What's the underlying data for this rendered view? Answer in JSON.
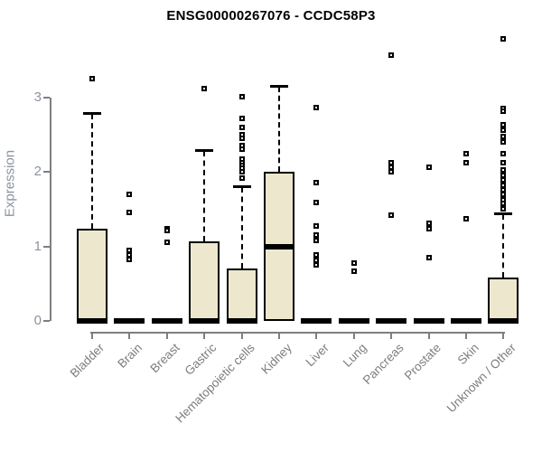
{
  "title": "ENSG00000267076 - CCDC58P3",
  "colors": {
    "box_fill": "#EDE8CD",
    "box_border": "#000000",
    "axis_line": "#7f7f7f",
    "axis_text": "#8a93a0",
    "category_text": "#7d7d7d",
    "title_text": "#000000",
    "background": "#ffffff"
  },
  "chart_data": {
    "type": "boxplot",
    "title": "ENSG00000267076 - CCDC58P3",
    "xlabel": "",
    "ylabel": "Expression",
    "ylim": [
      0,
      3.9
    ],
    "yticks": [
      0,
      1,
      2,
      3
    ],
    "grid": false,
    "categories": [
      "Bladder",
      "Brain",
      "Breast",
      "Gastric",
      "Hematopoietic cells",
      "Kidney",
      "Liver",
      "Lung",
      "Pancreas",
      "Prostate",
      "Skin",
      "Unknown / Other"
    ],
    "series": [
      {
        "name": "Bladder",
        "low": 0,
        "q1": 0,
        "median": 0,
        "q3": 1.24,
        "high": 2.78,
        "outliers": [
          3.26
        ]
      },
      {
        "name": "Brain",
        "low": 0,
        "q1": 0,
        "median": 0,
        "q3": 0,
        "high": 0,
        "outliers": [
          1.7,
          1.46,
          0.95,
          0.89,
          0.82
        ]
      },
      {
        "name": "Breast",
        "low": 0,
        "q1": 0,
        "median": 0,
        "q3": 0,
        "high": 0,
        "outliers": [
          1.24,
          1.21,
          1.06
        ]
      },
      {
        "name": "Gastric",
        "low": 0,
        "q1": 0,
        "median": 0,
        "q3": 1.07,
        "high": 2.28,
        "outliers": [
          3.12
        ]
      },
      {
        "name": "Hematopoietic cells",
        "low": 0,
        "q1": 0,
        "median": 0,
        "q3": 0.71,
        "high": 1.8,
        "outliers": [
          3.01,
          2.72,
          2.6,
          2.5,
          2.45,
          2.36,
          2.31,
          2.17,
          2.13,
          2.09,
          2.05,
          2.01,
          1.92
        ]
      },
      {
        "name": "Kidney",
        "low": 0,
        "q1": 0,
        "median": 1.0,
        "q3": 2.0,
        "high": 3.15,
        "outliers": []
      },
      {
        "name": "Liver",
        "low": 0,
        "q1": 0,
        "median": 0,
        "q3": 0,
        "high": 0,
        "outliers": [
          2.87,
          1.86,
          1.59,
          1.28,
          1.15,
          1.08,
          0.89,
          0.81,
          0.75
        ]
      },
      {
        "name": "Lung",
        "low": 0,
        "q1": 0,
        "median": 0,
        "q3": 0,
        "high": 0,
        "outliers": [
          0.78,
          0.67
        ]
      },
      {
        "name": "Pancreas",
        "low": 0,
        "q1": 0,
        "median": 0,
        "q3": 0,
        "high": 0,
        "outliers": [
          3.57,
          2.13,
          2.07,
          2.01,
          1.42
        ]
      },
      {
        "name": "Prostate",
        "low": 0,
        "q1": 0,
        "median": 0,
        "q3": 0,
        "high": 0,
        "outliers": [
          2.07,
          1.31,
          1.24,
          0.85
        ]
      },
      {
        "name": "Skin",
        "low": 0,
        "q1": 0,
        "median": 0,
        "q3": 0,
        "high": 0,
        "outliers": [
          2.25,
          2.13,
          1.37
        ]
      },
      {
        "name": "Unknown / Other",
        "low": 0,
        "q1": 0,
        "median": 0,
        "q3": 0.58,
        "high": 1.43,
        "outliers": [
          3.79,
          2.85,
          2.82,
          2.64,
          2.56,
          2.48,
          2.4,
          2.25,
          2.13,
          2.03,
          1.96,
          1.89,
          1.82,
          1.76,
          1.7,
          1.63,
          1.58,
          1.51
        ]
      }
    ]
  }
}
